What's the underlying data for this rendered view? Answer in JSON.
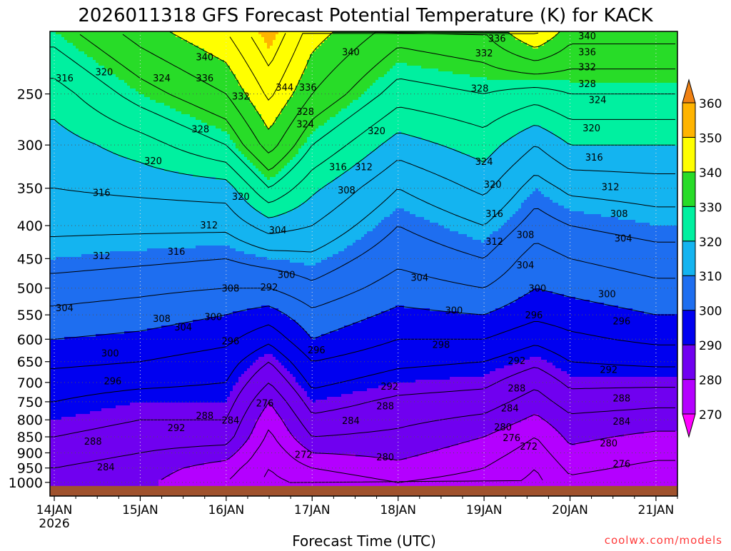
{
  "chart_data": {
    "type": "heatmap",
    "title": "2026011318 GFS Forecast Potential Temperature (K) for KACK",
    "xlabel": "Forecast Time (UTC)",
    "ylabel": "",
    "credit": "coolwx.com/models",
    "x_ticks": [
      {
        "label": "14JAN",
        "sub": "2026",
        "day": 14
      },
      {
        "label": "15JAN",
        "sub": "",
        "day": 15
      },
      {
        "label": "16JAN",
        "sub": "",
        "day": 16
      },
      {
        "label": "17JAN",
        "sub": "",
        "day": 17
      },
      {
        "label": "18JAN",
        "sub": "",
        "day": 18
      },
      {
        "label": "19JAN",
        "sub": "",
        "day": 19
      },
      {
        "label": "20JAN",
        "sub": "",
        "day": 20
      },
      {
        "label": "21JAN",
        "sub": "",
        "day": 21
      }
    ],
    "x_range_days": [
      13.95,
      21.25
    ],
    "y_scale": "log",
    "y_range_hPa": [
      1050,
      200
    ],
    "y_ticks": [
      250,
      300,
      350,
      400,
      450,
      500,
      550,
      600,
      650,
      700,
      750,
      800,
      850,
      900,
      950,
      1000
    ],
    "colorbar": {
      "levels": [
        270,
        280,
        290,
        300,
        310,
        320,
        330,
        340,
        350,
        360
      ],
      "labels": [
        "270",
        "280",
        "290",
        "300",
        "310",
        "320",
        "330",
        "340",
        "350",
        "360"
      ],
      "colors": [
        "#ff00ff",
        "#b400ff",
        "#7000f0",
        "#0000f0",
        "#1e6ef0",
        "#14b4f0",
        "#00f0a0",
        "#28dc28",
        "#ffff00",
        "#ffb400",
        "#f08214"
      ]
    },
    "ground_color": "#a0522d",
    "grid": "dotted",
    "isotherm_profile_K": {
      "pressures": [
        1000,
        950,
        900,
        850,
        800,
        750,
        700,
        650,
        600,
        550,
        500,
        450,
        400,
        350,
        300,
        250,
        200
      ],
      "days": [
        14.0,
        15.0,
        16.0,
        16.5,
        17.0,
        18.0,
        19.0,
        19.6,
        20.0,
        21.0
      ],
      "columns": [
        [
          281,
          284,
          286,
          288,
          290,
          292,
          294,
          297,
          300,
          303,
          306,
          310,
          313,
          316,
          318,
          322,
          330
        ],
        [
          281,
          282,
          284,
          286,
          288,
          290,
          293,
          296,
          299,
          302,
          305,
          309,
          313,
          317,
          322,
          330,
          338
        ],
        [
          276,
          278,
          282,
          286,
          288,
          290,
          292,
          294,
          297,
          300,
          304,
          308,
          313,
          318,
          328,
          336,
          344
        ],
        [
          271,
          272,
          273,
          275,
          277,
          280,
          284,
          288,
          293,
          298,
          304,
          310,
          318,
          328,
          338,
          345,
          352
        ],
        [
          273,
          276,
          280,
          284,
          287,
          290,
          293,
          296,
          300,
          303,
          307,
          311,
          316,
          321,
          328,
          336,
          342
        ],
        [
          276,
          279,
          281,
          283,
          285,
          287,
          290,
          293,
          296,
          299,
          302,
          305,
          308,
          312,
          318,
          326,
          334
        ],
        [
          274,
          276,
          278,
          280,
          283,
          286,
          289,
          292,
          296,
          300,
          304,
          308,
          312,
          317,
          322,
          328,
          336
        ],
        [
          271,
          272,
          274,
          276,
          279,
          282,
          285,
          289,
          293,
          297,
          300,
          302,
          306,
          310,
          316,
          326,
          345
        ],
        [
          275,
          277,
          279,
          281,
          283,
          286,
          289,
          292,
          295,
          298,
          301,
          304,
          308,
          313,
          320,
          328,
          338
        ],
        [
          273,
          275,
          277,
          279,
          282,
          285,
          289,
          293,
          297,
          300,
          303,
          306,
          310,
          314,
          320,
          328,
          338
        ]
      ]
    },
    "annotations": [
      {
        "text": "316",
        "day": 14.12,
        "p": 236
      },
      {
        "text": "320",
        "day": 14.58,
        "p": 231
      },
      {
        "text": "324",
        "day": 15.25,
        "p": 236
      },
      {
        "text": "340",
        "day": 15.75,
        "p": 219
      },
      {
        "text": "336",
        "day": 15.75,
        "p": 236
      },
      {
        "text": "332",
        "day": 16.17,
        "p": 252
      },
      {
        "text": "328",
        "day": 15.7,
        "p": 283
      },
      {
        "text": "320",
        "day": 15.15,
        "p": 317
      },
      {
        "text": "316",
        "day": 14.55,
        "p": 355
      },
      {
        "text": "320",
        "day": 16.17,
        "p": 360
      },
      {
        "text": "312",
        "day": 15.8,
        "p": 399
      },
      {
        "text": "316",
        "day": 15.42,
        "p": 438
      },
      {
        "text": "312",
        "day": 14.55,
        "p": 445
      },
      {
        "text": "304",
        "day": 16.6,
        "p": 406
      },
      {
        "text": "344",
        "day": 16.68,
        "p": 244
      },
      {
        "text": "336",
        "day": 16.95,
        "p": 244
      },
      {
        "text": "328",
        "day": 16.92,
        "p": 266
      },
      {
        "text": "324",
        "day": 16.92,
        "p": 278
      },
      {
        "text": "340",
        "day": 17.45,
        "p": 215
      },
      {
        "text": "320",
        "day": 17.75,
        "p": 285
      },
      {
        "text": "316",
        "day": 17.3,
        "p": 324
      },
      {
        "text": "312",
        "day": 17.6,
        "p": 324
      },
      {
        "text": "308",
        "day": 17.4,
        "p": 352
      },
      {
        "text": "304",
        "day": 18.25,
        "p": 481
      },
      {
        "text": "300",
        "day": 16.7,
        "p": 476
      },
      {
        "text": "308",
        "day": 16.05,
        "p": 500
      },
      {
        "text": "292",
        "day": 16.5,
        "p": 498
      },
      {
        "text": "300",
        "day": 15.85,
        "p": 553
      },
      {
        "text": "296",
        "day": 16.05,
        "p": 603
      },
      {
        "text": "308",
        "day": 15.25,
        "p": 557
      },
      {
        "text": "304",
        "day": 15.5,
        "p": 574
      },
      {
        "text": "304",
        "day": 14.12,
        "p": 536
      },
      {
        "text": "300",
        "day": 14.65,
        "p": 630
      },
      {
        "text": "296",
        "day": 14.68,
        "p": 696
      },
      {
        "text": "288",
        "day": 15.75,
        "p": 787
      },
      {
        "text": "284",
        "day": 16.05,
        "p": 801
      },
      {
        "text": "276",
        "day": 16.45,
        "p": 753
      },
      {
        "text": "292",
        "day": 15.42,
        "p": 822
      },
      {
        "text": "288",
        "day": 14.45,
        "p": 863
      },
      {
        "text": "284",
        "day": 14.6,
        "p": 946
      },
      {
        "text": "296",
        "day": 17.05,
        "p": 623
      },
      {
        "text": "292",
        "day": 17.9,
        "p": 709
      },
      {
        "text": "288",
        "day": 17.85,
        "p": 761
      },
      {
        "text": "284",
        "day": 17.45,
        "p": 802
      },
      {
        "text": "272",
        "day": 16.9,
        "p": 905
      },
      {
        "text": "280",
        "day": 17.85,
        "p": 913
      },
      {
        "text": "300",
        "day": 18.65,
        "p": 541
      },
      {
        "text": "298",
        "day": 18.5,
        "p": 611
      },
      {
        "text": "332",
        "day": 19.0,
        "p": 216
      },
      {
        "text": "336",
        "day": 19.15,
        "p": 205
      },
      {
        "text": "328",
        "day": 18.95,
        "p": 245
      },
      {
        "text": "324",
        "day": 19.0,
        "p": 318
      },
      {
        "text": "320",
        "day": 19.1,
        "p": 345
      },
      {
        "text": "316",
        "day": 19.12,
        "p": 383
      },
      {
        "text": "312",
        "day": 19.12,
        "p": 423
      },
      {
        "text": "308",
        "day": 19.48,
        "p": 413
      },
      {
        "text": "304",
        "day": 19.48,
        "p": 460
      },
      {
        "text": "300",
        "day": 19.62,
        "p": 500
      },
      {
        "text": "296",
        "day": 19.58,
        "p": 550
      },
      {
        "text": "292",
        "day": 19.38,
        "p": 647
      },
      {
        "text": "288",
        "day": 19.38,
        "p": 714
      },
      {
        "text": "284",
        "day": 19.3,
        "p": 767
      },
      {
        "text": "280",
        "day": 19.22,
        "p": 820
      },
      {
        "text": "276",
        "day": 19.32,
        "p": 852
      },
      {
        "text": "272",
        "day": 19.52,
        "p": 878
      },
      {
        "text": "340",
        "day": 20.2,
        "p": 203
      },
      {
        "text": "336",
        "day": 20.2,
        "p": 215
      },
      {
        "text": "332",
        "day": 20.2,
        "p": 227
      },
      {
        "text": "328",
        "day": 20.2,
        "p": 241
      },
      {
        "text": "324",
        "day": 20.32,
        "p": 255
      },
      {
        "text": "320",
        "day": 20.25,
        "p": 282
      },
      {
        "text": "316",
        "day": 20.28,
        "p": 313
      },
      {
        "text": "312",
        "day": 20.47,
        "p": 348
      },
      {
        "text": "308",
        "day": 20.57,
        "p": 383
      },
      {
        "text": "304",
        "day": 20.62,
        "p": 418
      },
      {
        "text": "300",
        "day": 20.43,
        "p": 510
      },
      {
        "text": "296",
        "day": 20.6,
        "p": 562
      },
      {
        "text": "292",
        "day": 20.45,
        "p": 668
      },
      {
        "text": "288",
        "day": 20.6,
        "p": 740
      },
      {
        "text": "284",
        "day": 20.6,
        "p": 804
      },
      {
        "text": "280",
        "day": 20.45,
        "p": 868
      },
      {
        "text": "276",
        "day": 20.6,
        "p": 935
      }
    ]
  }
}
